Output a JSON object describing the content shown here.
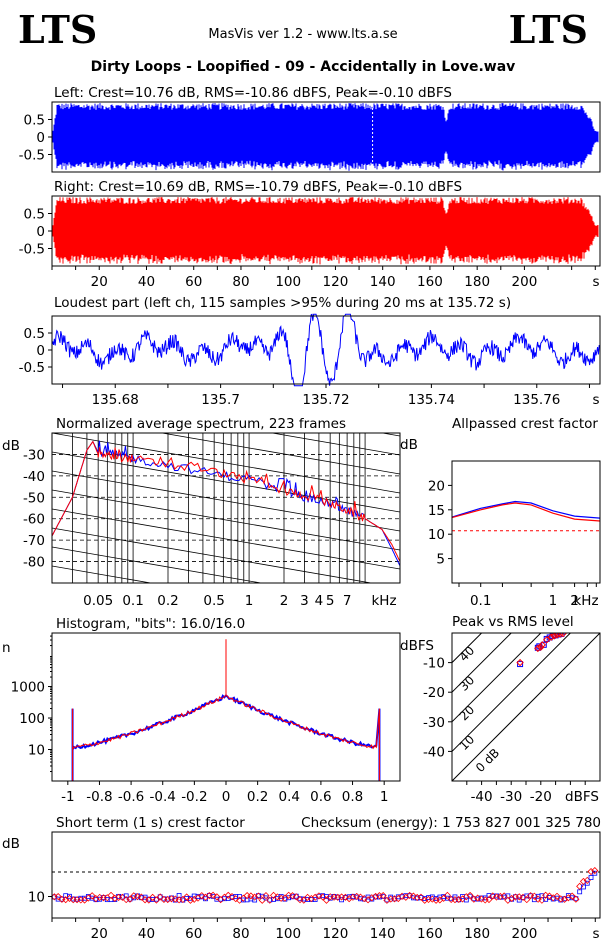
{
  "header": {
    "logo_left": "LTS",
    "logo_right": "LTS",
    "app_title": "MasVis ver 1.2 - www.lts.a.se",
    "file_title": "Dirty Loops - Loopified - 09 - Accidentally in Love.wav"
  },
  "colors": {
    "left": "#0000ff",
    "right": "#ff0000",
    "reference": "#ff0000"
  },
  "chart_data": [
    {
      "id": "left-waveform",
      "type": "area",
      "title": "Left: Crest=10.76 dB, RMS=-10.86 dBFS, Peak=-0.10 dBFS",
      "ylim": [
        -1,
        1
      ],
      "yticks": [
        "0.5",
        "0",
        "-0.5"
      ],
      "xlim": [
        0,
        232
      ],
      "color": "#0000ff",
      "marker_x": 135.72,
      "dips_x": [
        167,
        230
      ]
    },
    {
      "id": "right-waveform",
      "type": "area",
      "title": "Right: Crest=10.69 dB, RMS=-10.79 dBFS, Peak=-0.10 dBFS",
      "ylim": [
        -1,
        1
      ],
      "yticks": [
        "0.5",
        "0",
        "-0.5"
      ],
      "xlim": [
        0,
        232
      ],
      "xticks": [
        "20",
        "40",
        "60",
        "80",
        "100",
        "120",
        "140",
        "160",
        "180",
        "200"
      ],
      "xunit": "s",
      "color": "#ff0000"
    },
    {
      "id": "loudest-part",
      "type": "line",
      "title": "Loudest part (left  ch, 115 samples >95% during 20 ms at 135.72 s)",
      "xlim": [
        135.668,
        135.772
      ],
      "ylim": [
        -1,
        1
      ],
      "yticks": [
        "0.5",
        "0",
        "-0.5"
      ],
      "xticks": [
        "135.68",
        "135.7",
        "135.72",
        "135.74",
        "135.76"
      ],
      "xunit": "s",
      "color": "#0000ff"
    },
    {
      "id": "avg-spectrum",
      "type": "line",
      "title": "Normalized average spectrum, 223 frames",
      "ylabel": "dB",
      "yticks": [
        "-30",
        "-40",
        "-50",
        "-60",
        "-70",
        "-80"
      ],
      "xticks": [
        "0.05",
        "0.1",
        "0.2",
        "0.5",
        "1",
        "2",
        "3",
        "4",
        "5",
        "7"
      ],
      "xunit": "kHz",
      "xlim": [
        0.02,
        20
      ],
      "ylim": [
        -90,
        -20
      ],
      "series": [
        {
          "color": "#0000ff",
          "points": [
            [
              0.02,
              -68
            ],
            [
              0.03,
              -50
            ],
            [
              0.04,
              -28
            ],
            [
              0.045,
              -24
            ],
            [
              0.05,
              -29
            ],
            [
              0.07,
              -30
            ],
            [
              0.1,
              -32
            ],
            [
              0.2,
              -35
            ],
            [
              0.5,
              -39
            ],
            [
              1,
              -42
            ],
            [
              2,
              -47
            ],
            [
              3,
              -50
            ],
            [
              5,
              -53
            ],
            [
              7,
              -56
            ],
            [
              10,
              -60
            ],
            [
              14,
              -65
            ],
            [
              17,
              -74
            ],
            [
              20,
              -82
            ]
          ]
        },
        {
          "color": "#ff0000",
          "points": [
            [
              0.02,
              -68
            ],
            [
              0.03,
              -50
            ],
            [
              0.04,
              -28
            ],
            [
              0.045,
              -24
            ],
            [
              0.05,
              -30
            ],
            [
              0.07,
              -31
            ],
            [
              0.1,
              -32
            ],
            [
              0.2,
              -35
            ],
            [
              0.5,
              -38
            ],
            [
              1,
              -42
            ],
            [
              2,
              -47
            ],
            [
              3,
              -49
            ],
            [
              5,
              -53
            ],
            [
              7,
              -56
            ],
            [
              10,
              -60
            ],
            [
              14,
              -65
            ],
            [
              17,
              -72
            ],
            [
              20,
              -80
            ]
          ]
        }
      ]
    },
    {
      "id": "allpassed-crest",
      "type": "line",
      "title": "Allpassed crest factor",
      "ylabel": "dB",
      "yticks": [
        "20",
        "15",
        "10",
        "5"
      ],
      "xticks": [
        "0.1",
        "1",
        "2"
      ],
      "xunit": "kHz",
      "xlim": [
        0.04,
        4.5
      ],
      "ylim": [
        0,
        25
      ],
      "reference": 10.7,
      "series": [
        {
          "color": "#0000ff",
          "points": [
            [
              0.04,
              13.5
            ],
            [
              0.1,
              15.3
            ],
            [
              0.2,
              16.2
            ],
            [
              0.3,
              16.7
            ],
            [
              0.5,
              16.4
            ],
            [
              1,
              14.8
            ],
            [
              2,
              13.7
            ],
            [
              4.5,
              13.3
            ]
          ]
        },
        {
          "color": "#ff0000",
          "points": [
            [
              0.04,
              13.4
            ],
            [
              0.1,
              15.0
            ],
            [
              0.2,
              16.0
            ],
            [
              0.3,
              16.4
            ],
            [
              0.5,
              16.0
            ],
            [
              1,
              14.3
            ],
            [
              2,
              13.1
            ],
            [
              4.5,
              12.7
            ]
          ]
        }
      ]
    },
    {
      "id": "histogram",
      "type": "line",
      "title": "Histogram, \"bits\": 16.0/16.0",
      "ylabel": "n",
      "yticks": [
        "1000",
        "100",
        "10"
      ],
      "xticks": [
        "-1",
        "-0.8",
        "-0.6",
        "-0.4",
        "-0.2",
        "0",
        "0.2",
        "0.4",
        "0.6",
        "0.8",
        "1"
      ],
      "xlim": [
        -1.1,
        1.1
      ],
      "ylim_log10": [
        0,
        4.7
      ]
    },
    {
      "id": "peak-vs-rms",
      "type": "scatter",
      "title": "Peak vs RMS level",
      "ylabel": "dBFS",
      "xlabel": "dBFS",
      "xlim": [
        -50,
        0
      ],
      "ylim": [
        -50,
        0
      ],
      "yticks": [
        "-10",
        "-20",
        "-30",
        "-40"
      ],
      "xticks": [
        "-40",
        "-30",
        "-20"
      ],
      "diagonals": [
        "40",
        "30",
        "20",
        "10",
        "0 dB"
      ],
      "points_left": [
        [
          -27,
          -10.5
        ],
        [
          -21,
          -5
        ],
        [
          -20.5,
          -4.5
        ],
        [
          -19,
          -4
        ],
        [
          -18,
          -2
        ],
        [
          -17,
          -1.5
        ],
        [
          -16,
          -1
        ],
        [
          -15,
          -0.8
        ],
        [
          -14,
          -0.5
        ],
        [
          -13,
          -0.3
        ]
      ],
      "points_right": [
        [
          -27,
          -10
        ],
        [
          -21,
          -5.2
        ],
        [
          -20,
          -4.8
        ],
        [
          -19.5,
          -4
        ],
        [
          -18,
          -2.3
        ],
        [
          -16.5,
          -1.4
        ],
        [
          -15.5,
          -1
        ],
        [
          -14.5,
          -0.6
        ],
        [
          -13.5,
          -0.4
        ],
        [
          -12.5,
          -0.2
        ]
      ]
    },
    {
      "id": "short-term-crest",
      "type": "scatter",
      "title": "Short term (1 s) crest factor",
      "checksum": "Checksum (energy):  1 753 827 001 325 780",
      "ylabel": "dB",
      "yticks": [
        "10"
      ],
      "xticks": [
        "20",
        "40",
        "60",
        "80",
        "100",
        "120",
        "140",
        "160",
        "180",
        "200"
      ],
      "xunit": "s",
      "xlim": [
        0,
        232
      ],
      "ylim": [
        5,
        25
      ],
      "reference": 15.7
    }
  ]
}
